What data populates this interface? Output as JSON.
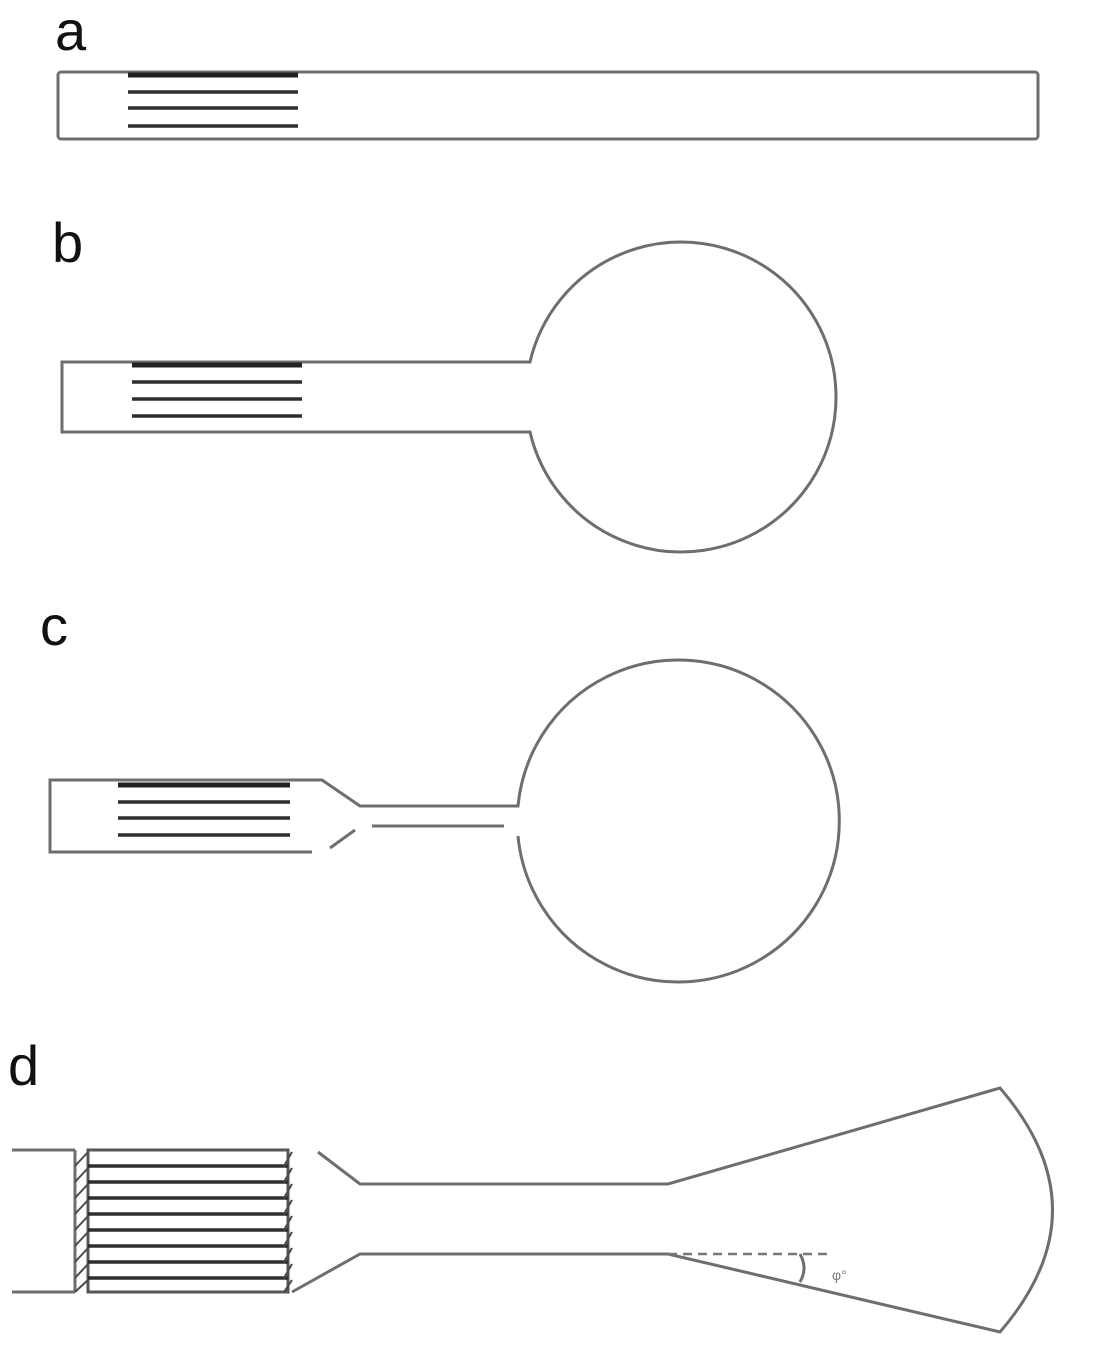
{
  "figure": {
    "panels": [
      {
        "id": "a",
        "label": "a"
      },
      {
        "id": "b",
        "label": "b"
      },
      {
        "id": "c",
        "label": "c"
      },
      {
        "id": "d",
        "label": "d"
      }
    ],
    "angle_label": "φ°"
  },
  "colors": {
    "outline": "#6e6e6e",
    "electrode_lines": "#2e2e2e",
    "background": "#ffffff"
  }
}
